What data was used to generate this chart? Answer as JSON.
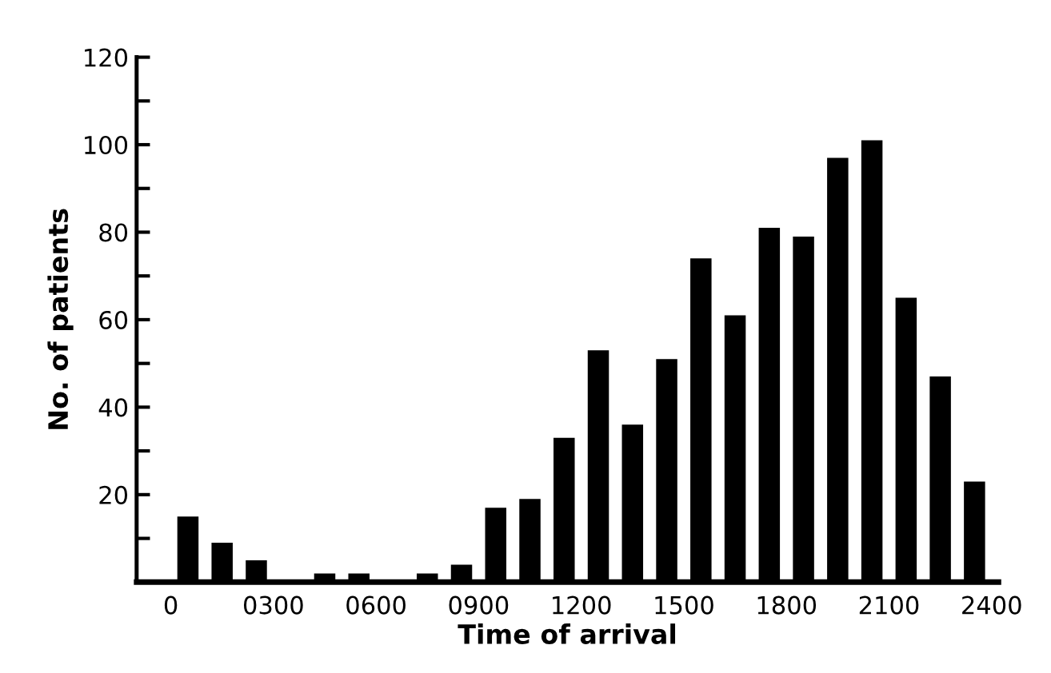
{
  "chart_data": {
    "type": "bar",
    "xlabel": "Time of arrival",
    "ylabel": "No. of patients",
    "x": [
      50,
      150,
      250,
      350,
      450,
      550,
      650,
      750,
      850,
      950,
      1050,
      1150,
      1250,
      1350,
      1450,
      1550,
      1650,
      1750,
      1850,
      1950,
      2050,
      2150,
      2250,
      2350
    ],
    "values": [
      15,
      9,
      5,
      0,
      2,
      2,
      0,
      2,
      4,
      17,
      19,
      33,
      53,
      36,
      51,
      74,
      61,
      81,
      79,
      97,
      101,
      65,
      47,
      23
    ],
    "color": "#000000",
    "xlim": [
      -100,
      2420
    ],
    "xticks": [
      0,
      {
        "value": 300,
        "label": "0300"
      },
      {
        "value": 600,
        "label": "0600"
      },
      {
        "value": 900,
        "label": "0900"
      },
      1200,
      1500,
      1800,
      2100,
      2400
    ],
    "ylim": [
      0,
      120
    ],
    "yticks": [
      {
        "value": 10,
        "label": null
      },
      20,
      {
        "value": 30,
        "label": null
      },
      40,
      {
        "value": 50,
        "label": null
      },
      60,
      {
        "value": 70,
        "label": null
      },
      80,
      {
        "value": 90,
        "label": null
      },
      100,
      {
        "value": 110,
        "label": null
      },
      120
    ],
    "grid": false
  }
}
